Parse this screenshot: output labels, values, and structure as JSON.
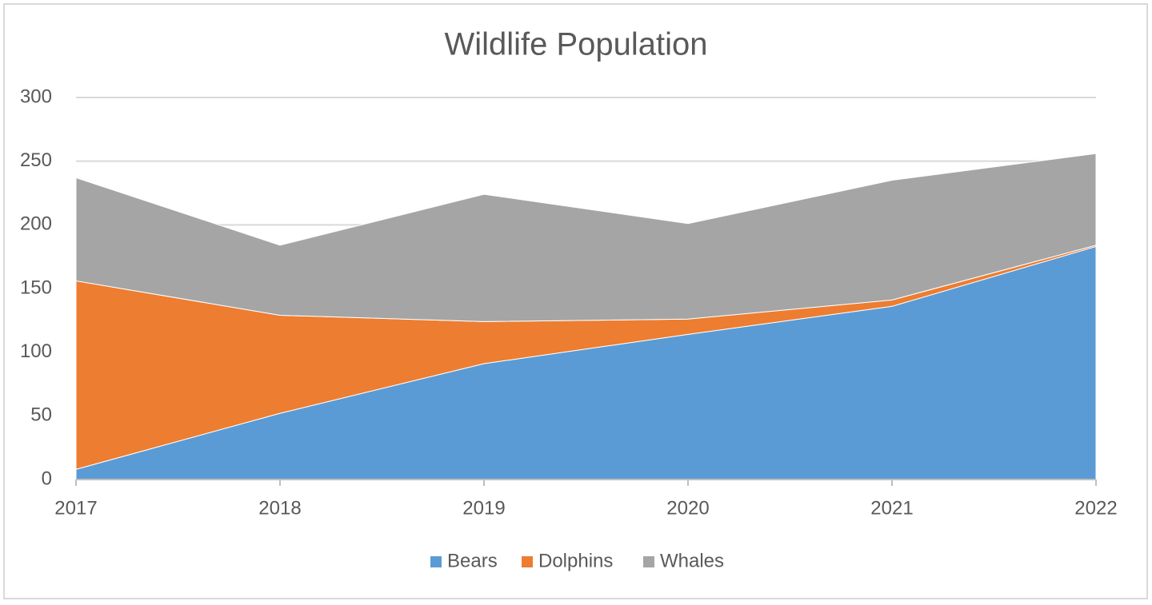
{
  "chart_data": {
    "type": "stacked_area",
    "title": "Wildlife Population",
    "categories": [
      "2017",
      "2018",
      "2019",
      "2020",
      "2021",
      "2022"
    ],
    "series": [
      {
        "name": "Bears",
        "color": "#5b9bd5",
        "values": [
          8,
          52,
          91,
          114,
          136,
          183
        ]
      },
      {
        "name": "Dolphins",
        "color": "#ed7d31",
        "values": [
          148,
          77,
          33,
          12,
          5,
          1
        ]
      },
      {
        "name": "Whales",
        "color": "#a5a5a5",
        "values": [
          81,
          55,
          100,
          75,
          94,
          72
        ]
      }
    ],
    "ylim": [
      0,
      300
    ],
    "yticks": [
      0,
      50,
      100,
      150,
      200,
      250,
      300
    ],
    "grid": true,
    "legend": "bottom"
  }
}
